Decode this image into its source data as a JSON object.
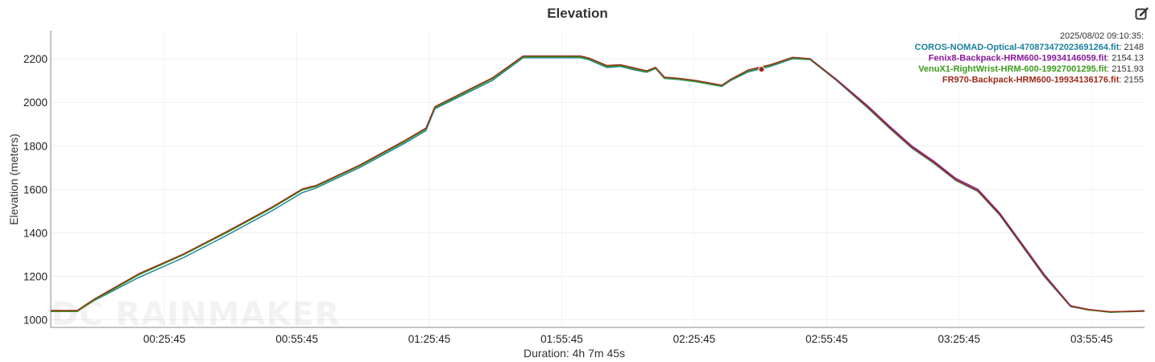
{
  "chart_data": {
    "type": "line",
    "title": "Elevation",
    "xlabel": "Duration: 4h 7m 45s",
    "ylabel": "Elevation (meters)",
    "x_unit": "elapsed time (h:mm:ss)",
    "xlim": [
      "0:00:00",
      "4:07:45"
    ],
    "ylim": [
      965,
      2330
    ],
    "x_ticks": [
      "00:25:45",
      "00:55:45",
      "01:25:45",
      "01:55:45",
      "02:25:45",
      "02:55:45",
      "03:25:45",
      "03:55:45"
    ],
    "x_tick_values": [
      "0:25:45",
      "0:55:45",
      "1:25:45",
      "1:55:45",
      "2:25:45",
      "2:55:45",
      "3:25:45",
      "3:55:45"
    ],
    "y_ticks": [
      1000,
      1200,
      1400,
      1600,
      1800,
      2000,
      2200
    ],
    "grid": true,
    "legend_position": "top-right",
    "watermark": "DC RAINMAKER",
    "tooltip": {
      "timestamp": "2025/08/02 09:10:35:",
      "marker_x": "2:41:00",
      "marker_y": 2152
    },
    "x": [
      "0:00:00",
      "0:06:00",
      "0:10:00",
      "0:20:00",
      "0:30:00",
      "0:40:00",
      "0:50:00",
      "0:57:00",
      "1:00:00",
      "1:10:00",
      "1:20:00",
      "1:25:00",
      "1:27:00",
      "1:40:00",
      "1:47:00",
      "2:00:00",
      "2:02:00",
      "2:06:00",
      "2:09:00",
      "2:12:00",
      "2:15:00",
      "2:17:00",
      "2:19:00",
      "2:22:00",
      "2:26:00",
      "2:32:00",
      "2:34:00",
      "2:38:00",
      "2:43:00",
      "2:48:00",
      "2:52:00",
      "2:58:00",
      "3:05:00",
      "3:10:00",
      "3:15:00",
      "3:20:00",
      "3:25:00",
      "3:30:00",
      "3:35:00",
      "3:45:00",
      "3:51:00",
      "3:55:00",
      "4:00:00",
      "4:07:45"
    ],
    "series": [
      {
        "name": "COROS-NOMAD-Optical-470873472023691264.fit",
        "color": "#1a7f9c",
        "current_value": "2148",
        "values": [
          1040,
          1040,
          1090,
          1195,
          1285,
          1390,
          1500,
          1585,
          1605,
          1700,
          1810,
          1870,
          1970,
          2100,
          2205,
          2205,
          2195,
          2160,
          2165,
          2150,
          2138,
          2155,
          2110,
          2105,
          2095,
          2073,
          2100,
          2140,
          2165,
          2200,
          2196,
          2100,
          1975,
          1880,
          1790,
          1720,
          1640,
          1590,
          1480,
          1200,
          1060,
          1046,
          1034,
          1040
        ]
      },
      {
        "name": "Fenix8-Backpack-HRM600-19934146059.fit",
        "color": "#8a1a9c",
        "current_value": "2154.13",
        "values": [
          1042,
          1042,
          1095,
          1210,
          1300,
          1405,
          1515,
          1600,
          1615,
          1710,
          1820,
          1880,
          1978,
          2110,
          2212,
          2212,
          2202,
          2168,
          2172,
          2158,
          2144,
          2160,
          2115,
          2110,
          2100,
          2078,
          2105,
          2148,
          2172,
          2206,
          2200,
          2105,
          1985,
          1890,
          1800,
          1730,
          1650,
          1600,
          1490,
          1210,
          1065,
          1048,
          1036,
          1042
        ]
      },
      {
        "name": "VenuX1-RightWrist-HRM-600-19927001295.fit",
        "color": "#3a9c1a",
        "current_value": "2151.93",
        "values": [
          1038,
          1038,
          1092,
          1207,
          1298,
          1402,
          1512,
          1597,
          1612,
          1707,
          1817,
          1877,
          1975,
          2107,
          2209,
          2209,
          2199,
          2164,
          2169,
          2154,
          2141,
          2157,
          2112,
          2107,
          2097,
          2075,
          2102,
          2145,
          2169,
          2203,
          2198,
          2102,
          1978,
          1882,
          1792,
          1722,
          1642,
          1592,
          1482,
          1202,
          1062,
          1045,
          1035,
          1039
        ]
      },
      {
        "name": "FR970-Backpack-HRM600-19934136176.fit",
        "color": "#9c2a1a",
        "current_value": "2155",
        "values": [
          1043,
          1043,
          1097,
          1212,
          1302,
          1407,
          1517,
          1602,
          1617,
          1712,
          1822,
          1882,
          1980,
          2112,
          2213,
          2213,
          2203,
          2169,
          2173,
          2159,
          2145,
          2161,
          2116,
          2111,
          2101,
          2079,
          2106,
          2149,
          2173,
          2207,
          2201,
          2103,
          1980,
          1884,
          1794,
          1724,
          1644,
          1594,
          1484,
          1204,
          1063,
          1047,
          1037,
          1041
        ]
      }
    ]
  }
}
